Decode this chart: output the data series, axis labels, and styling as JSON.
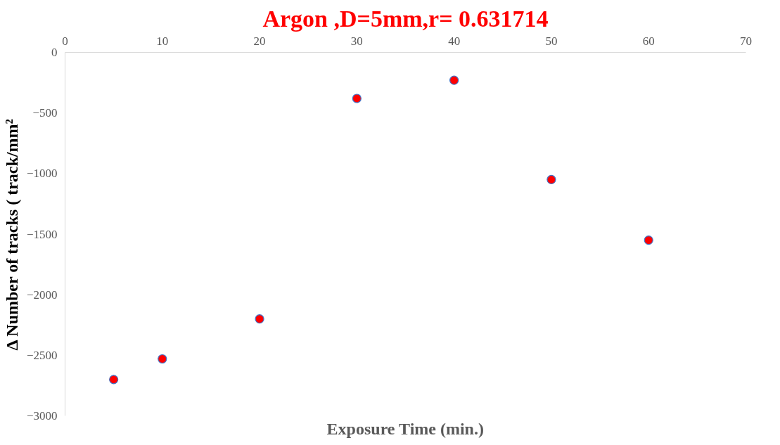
{
  "chart_data": {
    "type": "scatter",
    "title": "Argon ,D=5mm,r= 0.631714",
    "xlabel": "Exposure Time (min.)",
    "ylabel": "Δ Number of tracks ( track/mm²",
    "x": [
      5,
      10,
      20,
      30,
      40,
      50,
      60
    ],
    "series": [
      {
        "color": "#ff0000",
        "values": [
          -2700,
          -2530,
          -2200,
          -380,
          -230,
          -1050,
          -1550
        ]
      }
    ],
    "xlim": [
      0,
      70
    ],
    "xticks": [
      0,
      10,
      20,
      30,
      40,
      50,
      60,
      70
    ],
    "ylim": [
      -3000,
      0
    ],
    "yticks": [
      0,
      -500,
      -1000,
      -1500,
      -2000,
      -2500,
      -3000
    ],
    "grid": false,
    "marker": "circle"
  }
}
